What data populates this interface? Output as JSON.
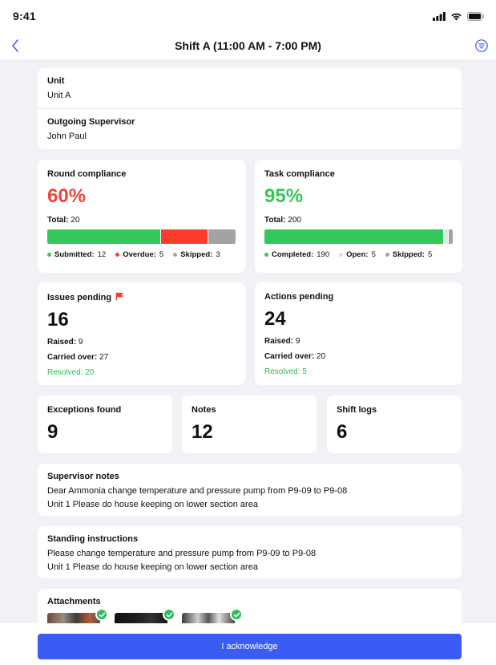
{
  "status_bar": {
    "time": "9:41"
  },
  "header": {
    "title": "Shift A (11:00 AM - 7:00 PM)"
  },
  "unit": {
    "label": "Unit",
    "value": "Unit A"
  },
  "supervisor": {
    "label": "Outgoing Supervisor",
    "value": "John Paul"
  },
  "round_compliance": {
    "title": "Round compliance",
    "percent": "60%",
    "percent_color": "#f0443a",
    "total_label": "Total:",
    "total": "20",
    "segments": [
      {
        "label": "Submitted:",
        "value": 12,
        "color": "#34c759"
      },
      {
        "label": "Overdue:",
        "value": 5,
        "color": "#ff3b30"
      },
      {
        "label": "Skipped:",
        "value": 3,
        "color": "#a3a3a3"
      }
    ]
  },
  "task_compliance": {
    "title": "Task compliance",
    "percent": "95%",
    "percent_color": "#34c759",
    "total_label": "Total:",
    "total": "200",
    "segments": [
      {
        "label": "Completed:",
        "value": 190,
        "color": "#34c759"
      },
      {
        "label": "Open:",
        "value": 5,
        "color": "#e6e6e6"
      },
      {
        "label": "Skipped:",
        "value": 5,
        "color": "#a3a3a3"
      }
    ]
  },
  "issues": {
    "title": "Issues pending",
    "count": "16",
    "raised_label": "Raised:",
    "raised": "9",
    "carried_label": "Carried over:",
    "carried": "27",
    "resolved_label": "Resolved:",
    "resolved": "20"
  },
  "actions": {
    "title": "Actions pending",
    "count": "24",
    "raised_label": "Raised:",
    "raised": "9",
    "carried_label": "Carried over:",
    "carried": "20",
    "resolved_label": "Resolved:",
    "resolved": "5"
  },
  "exceptions": {
    "title": "Exceptions found",
    "count": "9"
  },
  "notes": {
    "title": "Notes",
    "count": "12"
  },
  "shift_logs": {
    "title": "Shift logs",
    "count": "6"
  },
  "supervisor_notes": {
    "title": "Supervisor notes",
    "line1": "Dear Ammonia change temperature and pressure pump from P9-09 to P9-08",
    "line2": "Unit 1 Please do house keeping on lower section area"
  },
  "standing_instructions": {
    "title": "Standing instructions",
    "line1": "Please change temperature and pressure pump from P9-09 to P9-08",
    "line2": "Unit 1 Please do house keeping on lower section area"
  },
  "attachments": {
    "title": "Attachments"
  },
  "footer": {
    "button": "I acknowledge"
  },
  "colors": {
    "accent": "#3a5cf5",
    "green": "#34c759",
    "red": "#ff3b30"
  }
}
